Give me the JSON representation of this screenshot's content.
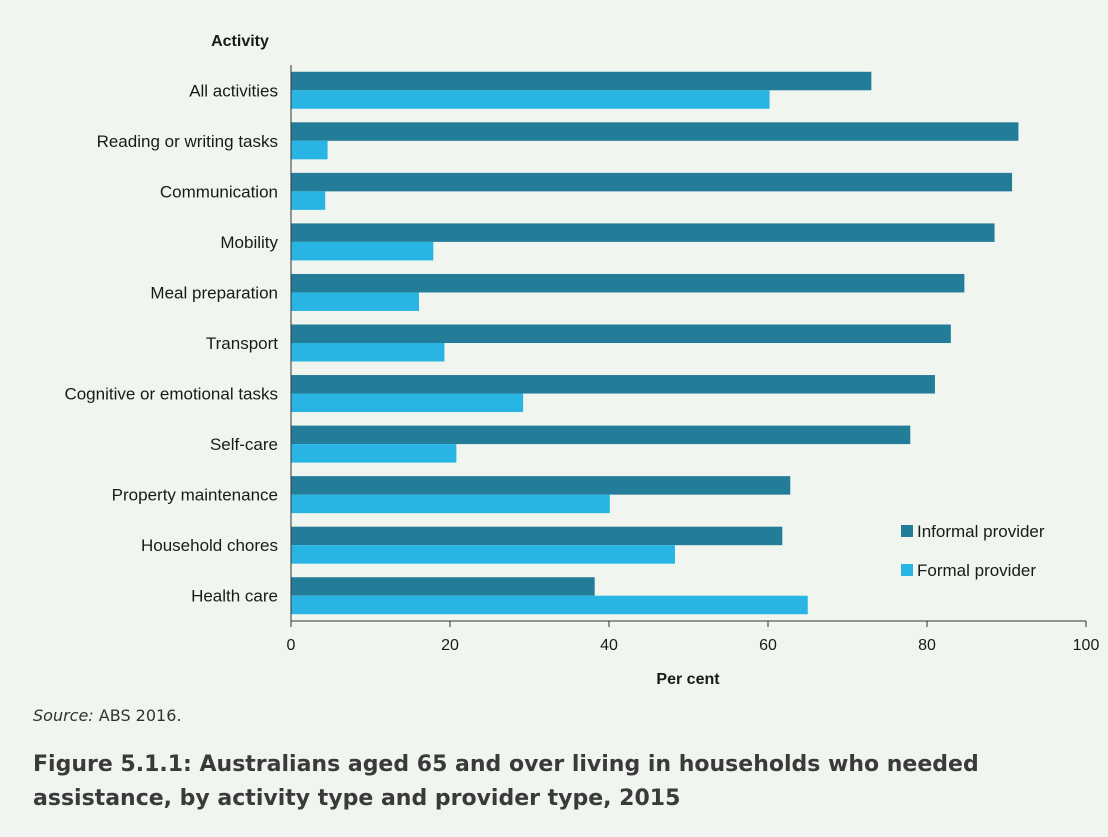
{
  "chart_data": {
    "type": "bar",
    "orientation": "horizontal",
    "ylabel": "Activity",
    "xlabel": "Per cent",
    "xlim": [
      0,
      100
    ],
    "xticks": [
      0,
      20,
      40,
      60,
      80,
      100
    ],
    "categories": [
      "All activities",
      "Reading or writing tasks",
      "Communication",
      "Mobility",
      "Meal preparation",
      "Transport",
      "Cognitive or emotional tasks",
      "Self-care",
      "Property maintenance",
      "Household chores",
      "Health care"
    ],
    "series": [
      {
        "name": "Informal provider",
        "color": "#237d98",
        "values": [
          73,
          91.5,
          90.7,
          88.5,
          84.7,
          83,
          81,
          77.9,
          62.8,
          61.8,
          38.2
        ]
      },
      {
        "name": "Formal provider",
        "color": "#29b5e3",
        "values": [
          60.2,
          4.6,
          4.3,
          17.9,
          16.1,
          19.3,
          29.2,
          20.8,
          40.1,
          48.3,
          65
        ]
      }
    ],
    "legend_position": "bottom-right",
    "grid": false
  },
  "source": {
    "label": "Source:",
    "text": "ABS 2016."
  },
  "caption": "Figure 5.1.1: Australians aged 65 and over living in households who needed assistance, by activity type and provider type, 2015"
}
